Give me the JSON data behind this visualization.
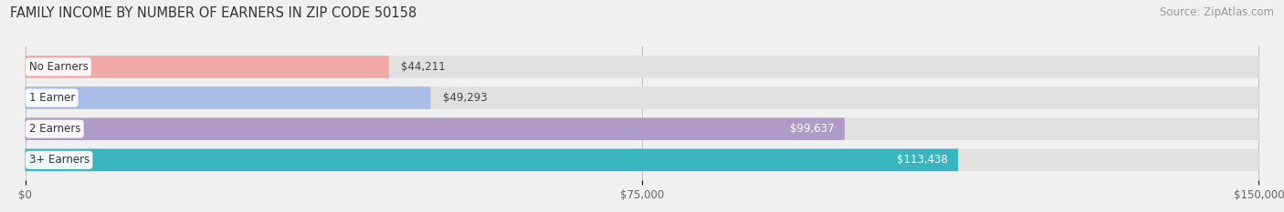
{
  "title": "FAMILY INCOME BY NUMBER OF EARNERS IN ZIP CODE 50158",
  "source": "Source: ZipAtlas.com",
  "categories": [
    "No Earners",
    "1 Earner",
    "2 Earners",
    "3+ Earners"
  ],
  "values": [
    44211,
    49293,
    99637,
    113438
  ],
  "bar_colors": [
    "#f2a8a6",
    "#aabde8",
    "#b09ac8",
    "#38b5bf"
  ],
  "value_labels": [
    "$44,211",
    "$49,293",
    "$99,637",
    "$113,438"
  ],
  "x_ticks": [
    0,
    75000,
    150000
  ],
  "x_tick_labels": [
    "$0",
    "$75,000",
    "$150,000"
  ],
  "xlim": [
    0,
    150000
  ],
  "background_color": "#f0f0f0",
  "bar_bg_color": "#e0e0e0",
  "title_fontsize": 10.5,
  "source_fontsize": 8.5,
  "label_fontsize": 8.5,
  "value_fontsize": 8.5
}
